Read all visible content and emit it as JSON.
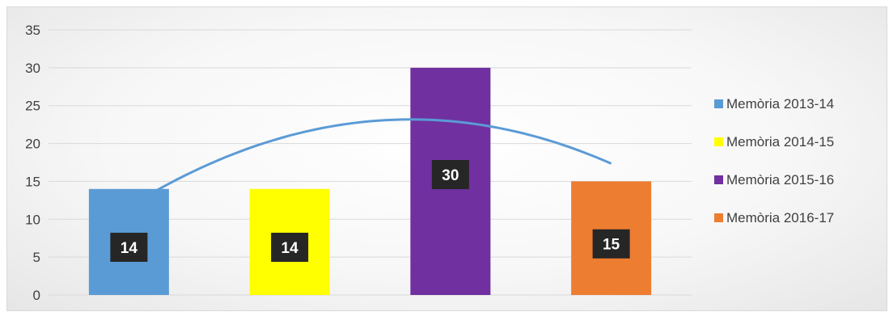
{
  "chart_data": {
    "type": "bar",
    "categories": [
      "",
      "",
      "",
      ""
    ],
    "series": [
      {
        "name": "Memòria 2013-14",
        "value": 14,
        "color": "#5b9bd5"
      },
      {
        "name": "Memòria 2014-15",
        "value": 14,
        "color": "#ffff00"
      },
      {
        "name": "Memòria 2015-16",
        "value": 30,
        "color": "#7030a0"
      },
      {
        "name": "Memòria 2016-17",
        "value": 15,
        "color": "#ed7d31"
      }
    ],
    "values": [
      14,
      14,
      30,
      15
    ],
    "data_labels": [
      "14",
      "14",
      "30",
      "15"
    ],
    "trendline": {
      "type": "polynomial",
      "color": "#5b9bd5"
    },
    "yticks": [
      "0",
      "5",
      "10",
      "15",
      "20",
      "25",
      "30",
      "35"
    ],
    "ylim": [
      0,
      35
    ],
    "grid": true,
    "legend": "right",
    "data_label_background": "#262626"
  }
}
